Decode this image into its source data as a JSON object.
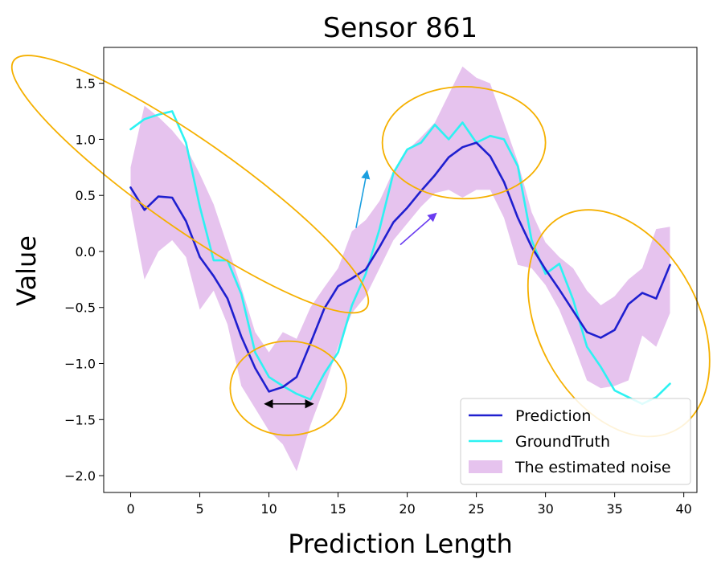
{
  "chart_data": {
    "type": "line",
    "title": "Sensor 861",
    "xlabel": "Prediction Length",
    "ylabel": "Value",
    "xlim": [
      -1.95,
      40.95
    ],
    "ylim": [
      -2.15,
      1.82
    ],
    "xticks": [
      0,
      5,
      10,
      15,
      20,
      25,
      30,
      35,
      40
    ],
    "yticks": [
      -2.0,
      -1.5,
      -1.0,
      -0.5,
      0.0,
      0.5,
      1.0,
      1.5
    ],
    "xtick_labels": [
      "0",
      "5",
      "10",
      "15",
      "20",
      "25",
      "30",
      "35",
      "40"
    ],
    "ytick_labels": [
      "−2.0",
      "−1.5",
      "−1.0",
      "−0.5",
      "0.0",
      "0.5",
      "1.0",
      "1.5"
    ],
    "grid": false,
    "legend_position": "lower-right",
    "x": [
      0,
      1,
      2,
      3,
      4,
      5,
      6,
      7,
      8,
      9,
      10,
      11,
      12,
      13,
      14,
      15,
      16,
      17,
      18,
      19,
      20,
      21,
      22,
      23,
      24,
      25,
      26,
      27,
      28,
      29,
      30,
      31,
      32,
      33,
      34,
      35,
      36,
      37,
      38,
      39
    ],
    "series": [
      {
        "name": "Prediction",
        "kind": "line",
        "color": "#1f1fcf",
        "values": [
          0.57,
          0.37,
          0.49,
          0.48,
          0.27,
          -0.05,
          -0.22,
          -0.42,
          -0.76,
          -1.04,
          -1.25,
          -1.21,
          -1.12,
          -0.82,
          -0.51,
          -0.31,
          -0.24,
          -0.16,
          0.04,
          0.26,
          0.39,
          0.54,
          0.68,
          0.84,
          0.93,
          0.97,
          0.85,
          0.62,
          0.3,
          0.04,
          -0.16,
          -0.34,
          -0.53,
          -0.72,
          -0.77,
          -0.7,
          -0.47,
          -0.37,
          -0.42,
          -0.12
        ]
      },
      {
        "name": "GroundTruth",
        "kind": "line",
        "color": "#2df2f2",
        "values": [
          1.09,
          1.18,
          1.22,
          1.25,
          0.97,
          0.4,
          -0.08,
          -0.08,
          -0.38,
          -0.9,
          -1.12,
          -1.2,
          -1.27,
          -1.32,
          -1.09,
          -0.9,
          -0.48,
          -0.2,
          0.2,
          0.7,
          0.91,
          0.97,
          1.13,
          1.0,
          1.15,
          0.97,
          1.03,
          1.0,
          0.76,
          0.1,
          -0.2,
          -0.11,
          -0.43,
          -0.85,
          -1.03,
          -1.24,
          -1.3,
          -1.36,
          -1.3,
          -1.18
        ]
      },
      {
        "name": "The estimated noise",
        "kind": "band",
        "color": "#e6c3ee",
        "upper": [
          0.75,
          1.3,
          1.2,
          1.08,
          0.93,
          0.69,
          0.42,
          0.05,
          -0.32,
          -0.72,
          -0.9,
          -0.72,
          -0.78,
          -0.5,
          -0.32,
          -0.15,
          0.18,
          0.28,
          0.45,
          0.72,
          0.9,
          1.02,
          1.15,
          1.4,
          1.65,
          1.55,
          1.5,
          1.15,
          0.8,
          0.35,
          0.08,
          -0.05,
          -0.15,
          -0.35,
          -0.48,
          -0.4,
          -0.25,
          -0.15,
          0.2,
          0.22
        ],
        "lower": [
          0.4,
          -0.25,
          0.0,
          0.1,
          -0.05,
          -0.52,
          -0.35,
          -0.65,
          -1.2,
          -1.4,
          -1.6,
          -1.72,
          -1.96,
          -1.55,
          -1.22,
          -0.85,
          -0.55,
          -0.4,
          -0.15,
          0.1,
          0.25,
          0.4,
          0.52,
          0.55,
          0.48,
          0.55,
          0.55,
          0.3,
          -0.12,
          -0.15,
          -0.3,
          -0.52,
          -0.82,
          -1.15,
          -1.22,
          -1.2,
          -1.15,
          -0.75,
          -0.85,
          -0.55
        ]
      }
    ],
    "annotations": [
      {
        "kind": "ellipse",
        "color": "#f5b000",
        "cx": 4.3,
        "cy": 0.6,
        "rx": 3.2,
        "ry": 0.8,
        "angle": -55
      },
      {
        "kind": "ellipse",
        "color": "#f5b000",
        "cx": 11.4,
        "cy": -1.22,
        "rx": 4.2,
        "ry": 0.42,
        "angle": 0
      },
      {
        "kind": "ellipse",
        "color": "#f5b000",
        "cx": 24.1,
        "cy": 0.97,
        "rx": 5.9,
        "ry": 0.5,
        "angle": 0
      },
      {
        "kind": "ellipse",
        "color": "#f5b000",
        "cx": 35.3,
        "cy": -0.64,
        "rx": 5.8,
        "ry": 0.45,
        "angle": -28
      },
      {
        "kind": "double-arrow",
        "color": "#000000",
        "x1": 9.7,
        "y1": -1.36,
        "x2": 13.2,
        "y2": -1.36
      },
      {
        "kind": "arrow",
        "color": "#1a9fe0",
        "x1": 16.3,
        "y1": 0.21,
        "x2": 17.1,
        "y2": 0.72
      },
      {
        "kind": "arrow",
        "color": "#6a3cf0",
        "x1": 19.5,
        "y1": 0.06,
        "x2": 22.1,
        "y2": 0.34
      }
    ]
  }
}
